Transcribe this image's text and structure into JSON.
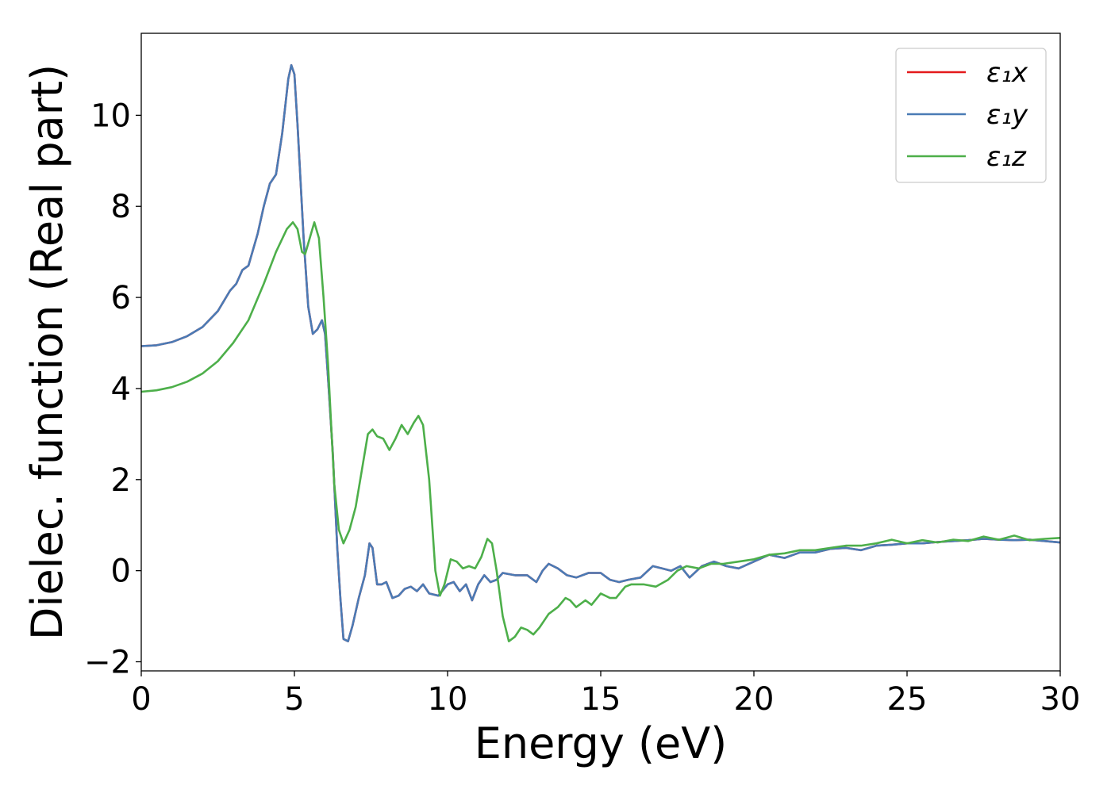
{
  "chart_data": {
    "type": "line",
    "title": "",
    "xlabel": "Energy (eV)",
    "ylabel": "Dielec. function (Real part)",
    "xlim": [
      0,
      30
    ],
    "ylim": [
      -2.2,
      11.8
    ],
    "xticks": [
      0,
      5,
      10,
      15,
      20,
      25,
      30
    ],
    "xtick_labels": [
      "0",
      "5",
      "10",
      "15",
      "20",
      "25",
      "30"
    ],
    "yticks": [
      -2,
      0,
      2,
      4,
      6,
      8,
      10
    ],
    "ytick_labels": [
      "−2",
      "0",
      "2",
      "4",
      "6",
      "8",
      "10"
    ],
    "grid": false,
    "legend_position": "top-right",
    "series": [
      {
        "name": "ε₁x",
        "color": "#e41a1c",
        "points": [
          [
            0,
            4.93
          ],
          [
            0.5,
            4.95
          ],
          [
            1,
            5.02
          ],
          [
            1.5,
            5.15
          ],
          [
            2,
            5.35
          ],
          [
            2.5,
            5.7
          ],
          [
            2.9,
            6.15
          ],
          [
            3.1,
            6.3
          ],
          [
            3.3,
            6.6
          ],
          [
            3.5,
            6.7
          ],
          [
            3.8,
            7.4
          ],
          [
            4.0,
            8.0
          ],
          [
            4.2,
            8.5
          ],
          [
            4.4,
            8.7
          ],
          [
            4.6,
            9.6
          ],
          [
            4.8,
            10.8
          ],
          [
            4.9,
            11.1
          ],
          [
            5.0,
            10.9
          ],
          [
            5.1,
            9.8
          ],
          [
            5.3,
            7.3
          ],
          [
            5.45,
            5.8
          ],
          [
            5.6,
            5.2
          ],
          [
            5.75,
            5.3
          ],
          [
            5.9,
            5.5
          ],
          [
            6.0,
            5.2
          ],
          [
            6.1,
            4.2
          ],
          [
            6.25,
            2.6
          ],
          [
            6.4,
            0.5
          ],
          [
            6.5,
            -0.6
          ],
          [
            6.6,
            -1.5
          ],
          [
            6.75,
            -1.55
          ],
          [
            6.9,
            -1.2
          ],
          [
            7.1,
            -0.6
          ],
          [
            7.3,
            -0.1
          ],
          [
            7.45,
            0.6
          ],
          [
            7.55,
            0.5
          ],
          [
            7.7,
            -0.3
          ],
          [
            7.85,
            -0.3
          ],
          [
            8.0,
            -0.25
          ],
          [
            8.2,
            -0.6
          ],
          [
            8.4,
            -0.55
          ],
          [
            8.6,
            -0.4
          ],
          [
            8.8,
            -0.35
          ],
          [
            9.0,
            -0.45
          ],
          [
            9.2,
            -0.3
          ],
          [
            9.4,
            -0.5
          ],
          [
            9.7,
            -0.55
          ],
          [
            10.0,
            -0.3
          ],
          [
            10.2,
            -0.25
          ],
          [
            10.4,
            -0.45
          ],
          [
            10.6,
            -0.3
          ],
          [
            10.8,
            -0.65
          ],
          [
            11.0,
            -0.3
          ],
          [
            11.2,
            -0.1
          ],
          [
            11.4,
            -0.25
          ],
          [
            11.6,
            -0.2
          ],
          [
            11.8,
            -0.05
          ],
          [
            12.2,
            -0.1
          ],
          [
            12.6,
            -0.1
          ],
          [
            12.9,
            -0.25
          ],
          [
            13.1,
            0.0
          ],
          [
            13.3,
            0.15
          ],
          [
            13.6,
            0.05
          ],
          [
            13.9,
            -0.1
          ],
          [
            14.2,
            -0.15
          ],
          [
            14.6,
            -0.05
          ],
          [
            15.0,
            -0.05
          ],
          [
            15.3,
            -0.2
          ],
          [
            15.6,
            -0.25
          ],
          [
            15.9,
            -0.2
          ],
          [
            16.3,
            -0.15
          ],
          [
            16.7,
            0.1
          ],
          [
            17.0,
            0.05
          ],
          [
            17.3,
            0.0
          ],
          [
            17.6,
            0.1
          ],
          [
            17.9,
            -0.15
          ],
          [
            18.3,
            0.1
          ],
          [
            18.7,
            0.2
          ],
          [
            19.1,
            0.1
          ],
          [
            19.5,
            0.05
          ],
          [
            20.0,
            0.2
          ],
          [
            20.5,
            0.35
          ],
          [
            21.0,
            0.28
          ],
          [
            21.5,
            0.4
          ],
          [
            22.0,
            0.4
          ],
          [
            22.5,
            0.48
          ],
          [
            23.0,
            0.5
          ],
          [
            23.5,
            0.45
          ],
          [
            24.0,
            0.55
          ],
          [
            24.5,
            0.57
          ],
          [
            25.0,
            0.6
          ],
          [
            25.5,
            0.6
          ],
          [
            26.0,
            0.63
          ],
          [
            26.5,
            0.65
          ],
          [
            27.0,
            0.67
          ],
          [
            27.5,
            0.7
          ],
          [
            28.0,
            0.68
          ],
          [
            28.5,
            0.67
          ],
          [
            29.0,
            0.68
          ],
          [
            29.5,
            0.65
          ],
          [
            30.0,
            0.62
          ]
        ]
      },
      {
        "name": "ε₁y",
        "color": "#4a7bb5",
        "points": [
          [
            0,
            4.93
          ],
          [
            0.5,
            4.95
          ],
          [
            1,
            5.02
          ],
          [
            1.5,
            5.15
          ],
          [
            2,
            5.35
          ],
          [
            2.5,
            5.7
          ],
          [
            2.9,
            6.15
          ],
          [
            3.1,
            6.3
          ],
          [
            3.3,
            6.6
          ],
          [
            3.5,
            6.7
          ],
          [
            3.8,
            7.4
          ],
          [
            4.0,
            8.0
          ],
          [
            4.2,
            8.5
          ],
          [
            4.4,
            8.7
          ],
          [
            4.6,
            9.6
          ],
          [
            4.8,
            10.8
          ],
          [
            4.9,
            11.1
          ],
          [
            5.0,
            10.9
          ],
          [
            5.1,
            9.8
          ],
          [
            5.3,
            7.3
          ],
          [
            5.45,
            5.8
          ],
          [
            5.6,
            5.2
          ],
          [
            5.75,
            5.3
          ],
          [
            5.9,
            5.5
          ],
          [
            6.0,
            5.2
          ],
          [
            6.1,
            4.2
          ],
          [
            6.25,
            2.6
          ],
          [
            6.4,
            0.5
          ],
          [
            6.5,
            -0.6
          ],
          [
            6.6,
            -1.5
          ],
          [
            6.75,
            -1.55
          ],
          [
            6.9,
            -1.2
          ],
          [
            7.1,
            -0.6
          ],
          [
            7.3,
            -0.1
          ],
          [
            7.45,
            0.6
          ],
          [
            7.55,
            0.5
          ],
          [
            7.7,
            -0.3
          ],
          [
            7.85,
            -0.3
          ],
          [
            8.0,
            -0.25
          ],
          [
            8.2,
            -0.6
          ],
          [
            8.4,
            -0.55
          ],
          [
            8.6,
            -0.4
          ],
          [
            8.8,
            -0.35
          ],
          [
            9.0,
            -0.45
          ],
          [
            9.2,
            -0.3
          ],
          [
            9.4,
            -0.5
          ],
          [
            9.7,
            -0.55
          ],
          [
            10.0,
            -0.3
          ],
          [
            10.2,
            -0.25
          ],
          [
            10.4,
            -0.45
          ],
          [
            10.6,
            -0.3
          ],
          [
            10.8,
            -0.65
          ],
          [
            11.0,
            -0.3
          ],
          [
            11.2,
            -0.1
          ],
          [
            11.4,
            -0.25
          ],
          [
            11.6,
            -0.2
          ],
          [
            11.8,
            -0.05
          ],
          [
            12.2,
            -0.1
          ],
          [
            12.6,
            -0.1
          ],
          [
            12.9,
            -0.25
          ],
          [
            13.1,
            0.0
          ],
          [
            13.3,
            0.15
          ],
          [
            13.6,
            0.05
          ],
          [
            13.9,
            -0.1
          ],
          [
            14.2,
            -0.15
          ],
          [
            14.6,
            -0.05
          ],
          [
            15.0,
            -0.05
          ],
          [
            15.3,
            -0.2
          ],
          [
            15.6,
            -0.25
          ],
          [
            15.9,
            -0.2
          ],
          [
            16.3,
            -0.15
          ],
          [
            16.7,
            0.1
          ],
          [
            17.0,
            0.05
          ],
          [
            17.3,
            0.0
          ],
          [
            17.6,
            0.1
          ],
          [
            17.9,
            -0.15
          ],
          [
            18.3,
            0.1
          ],
          [
            18.7,
            0.2
          ],
          [
            19.1,
            0.1
          ],
          [
            19.5,
            0.05
          ],
          [
            20.0,
            0.2
          ],
          [
            20.5,
            0.35
          ],
          [
            21.0,
            0.28
          ],
          [
            21.5,
            0.4
          ],
          [
            22.0,
            0.4
          ],
          [
            22.5,
            0.48
          ],
          [
            23.0,
            0.5
          ],
          [
            23.5,
            0.45
          ],
          [
            24.0,
            0.55
          ],
          [
            24.5,
            0.57
          ],
          [
            25.0,
            0.6
          ],
          [
            25.5,
            0.6
          ],
          [
            26.0,
            0.63
          ],
          [
            26.5,
            0.65
          ],
          [
            27.0,
            0.67
          ],
          [
            27.5,
            0.7
          ],
          [
            28.0,
            0.68
          ],
          [
            28.5,
            0.67
          ],
          [
            29.0,
            0.68
          ],
          [
            29.5,
            0.65
          ],
          [
            30.0,
            0.62
          ]
        ]
      },
      {
        "name": "ε₁z",
        "color": "#4daf4a",
        "points": [
          [
            0,
            3.93
          ],
          [
            0.5,
            3.96
          ],
          [
            1,
            4.03
          ],
          [
            1.5,
            4.15
          ],
          [
            2,
            4.33
          ],
          [
            2.5,
            4.6
          ],
          [
            3.0,
            5.0
          ],
          [
            3.5,
            5.5
          ],
          [
            4.0,
            6.3
          ],
          [
            4.4,
            7.0
          ],
          [
            4.75,
            7.5
          ],
          [
            4.95,
            7.65
          ],
          [
            5.1,
            7.5
          ],
          [
            5.25,
            7.0
          ],
          [
            5.35,
            6.95
          ],
          [
            5.5,
            7.3
          ],
          [
            5.65,
            7.65
          ],
          [
            5.8,
            7.3
          ],
          [
            5.95,
            6.0
          ],
          [
            6.1,
            4.5
          ],
          [
            6.2,
            3.2
          ],
          [
            6.3,
            1.9
          ],
          [
            6.45,
            0.9
          ],
          [
            6.6,
            0.6
          ],
          [
            6.8,
            0.9
          ],
          [
            7.0,
            1.4
          ],
          [
            7.2,
            2.2
          ],
          [
            7.4,
            3.0
          ],
          [
            7.55,
            3.1
          ],
          [
            7.7,
            2.95
          ],
          [
            7.9,
            2.9
          ],
          [
            8.1,
            2.65
          ],
          [
            8.3,
            2.9
          ],
          [
            8.5,
            3.2
          ],
          [
            8.7,
            3.0
          ],
          [
            8.9,
            3.25
          ],
          [
            9.05,
            3.4
          ],
          [
            9.2,
            3.2
          ],
          [
            9.4,
            2.0
          ],
          [
            9.6,
            0.0
          ],
          [
            9.75,
            -0.55
          ],
          [
            9.9,
            -0.3
          ],
          [
            10.1,
            0.25
          ],
          [
            10.3,
            0.2
          ],
          [
            10.5,
            0.05
          ],
          [
            10.7,
            0.1
          ],
          [
            10.9,
            0.05
          ],
          [
            11.1,
            0.3
          ],
          [
            11.3,
            0.7
          ],
          [
            11.45,
            0.6
          ],
          [
            11.6,
            0.0
          ],
          [
            11.8,
            -1.0
          ],
          [
            12.0,
            -1.55
          ],
          [
            12.2,
            -1.45
          ],
          [
            12.4,
            -1.25
          ],
          [
            12.6,
            -1.3
          ],
          [
            12.8,
            -1.4
          ],
          [
            13.0,
            -1.25
          ],
          [
            13.3,
            -0.95
          ],
          [
            13.6,
            -0.8
          ],
          [
            13.85,
            -0.6
          ],
          [
            14.0,
            -0.65
          ],
          [
            14.2,
            -0.8
          ],
          [
            14.5,
            -0.65
          ],
          [
            14.7,
            -0.75
          ],
          [
            15.0,
            -0.5
          ],
          [
            15.3,
            -0.6
          ],
          [
            15.5,
            -0.6
          ],
          [
            15.8,
            -0.35
          ],
          [
            16.0,
            -0.3
          ],
          [
            16.4,
            -0.3
          ],
          [
            16.8,
            -0.35
          ],
          [
            17.2,
            -0.2
          ],
          [
            17.5,
            0.0
          ],
          [
            17.8,
            0.1
          ],
          [
            18.2,
            0.05
          ],
          [
            18.6,
            0.15
          ],
          [
            19.0,
            0.15
          ],
          [
            19.5,
            0.2
          ],
          [
            20.0,
            0.25
          ],
          [
            20.5,
            0.35
          ],
          [
            21.0,
            0.38
          ],
          [
            21.5,
            0.45
          ],
          [
            22.0,
            0.45
          ],
          [
            22.5,
            0.5
          ],
          [
            23.0,
            0.55
          ],
          [
            23.5,
            0.55
          ],
          [
            24.0,
            0.6
          ],
          [
            24.5,
            0.68
          ],
          [
            25.0,
            0.6
          ],
          [
            25.5,
            0.67
          ],
          [
            26.0,
            0.62
          ],
          [
            26.5,
            0.68
          ],
          [
            27.0,
            0.65
          ],
          [
            27.5,
            0.75
          ],
          [
            28.0,
            0.68
          ],
          [
            28.5,
            0.77
          ],
          [
            29.0,
            0.67
          ],
          [
            29.5,
            0.7
          ],
          [
            30.0,
            0.72
          ]
        ]
      }
    ]
  }
}
